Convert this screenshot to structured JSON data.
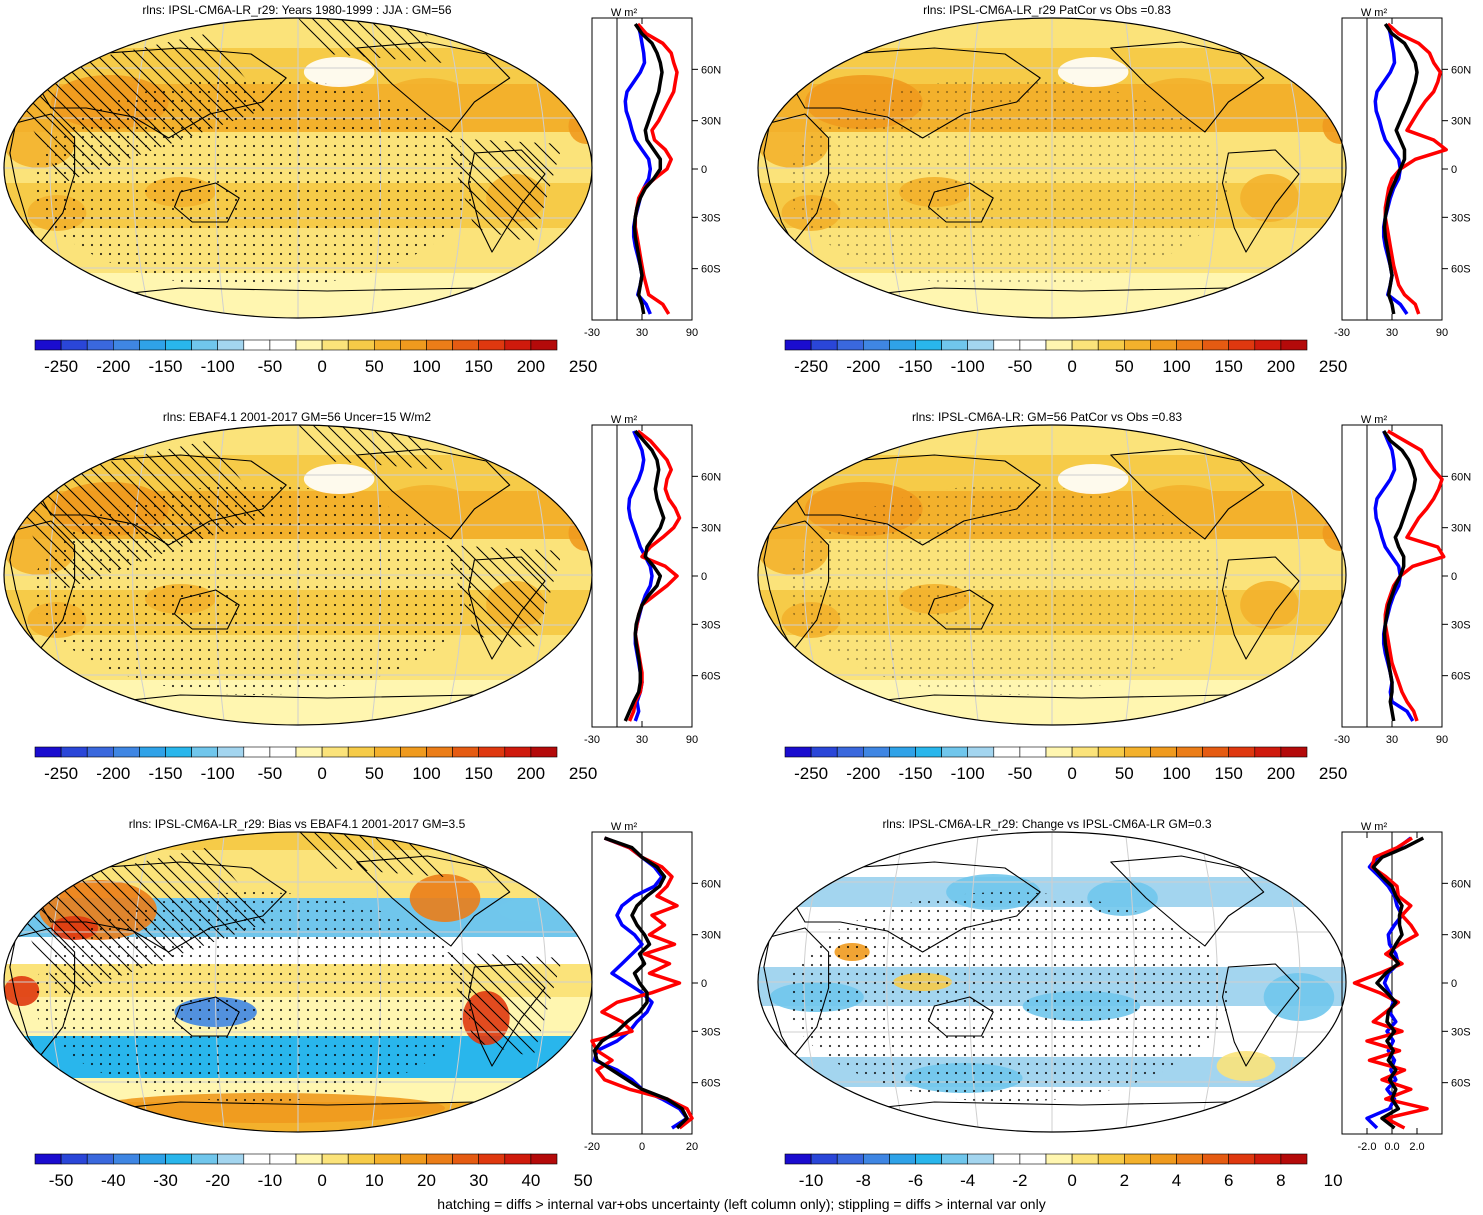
{
  "footnote": "hatching = diffs > internal var+obs uncertainty (left column only); stippling = diffs > internal var only",
  "zonal_units": "W m²",
  "lat_labels": [
    "60N",
    "30N",
    "0",
    "30S",
    "60S"
  ],
  "palettes": {
    "diverging": [
      "#1a0ccf",
      "#2a46d8",
      "#3a68dd",
      "#3f86e3",
      "#2fa2e8",
      "#29b6ec",
      "#70c6ec",
      "#a3d5ef",
      "#ffffff",
      "#ffffff",
      "#fff6b0",
      "#fbe37a",
      "#f6cb48",
      "#f3b12c",
      "#ef9a1e",
      "#eb7d18",
      "#e55b12",
      "#df380f",
      "#cf1a0c",
      "#b40a0a"
    ]
  },
  "panels": [
    {
      "id": "model-climatology",
      "title": "rlns: IPSL-CM6A-LR_r29: Years 1980-1999 : JJA : GM=56",
      "map_type": "mean",
      "hatching": true,
      "stippling": true,
      "colorbar_labels": [
        "-250",
        "-200",
        "-150",
        "-100",
        "-50",
        "0",
        "50",
        "100",
        "150",
        "200",
        "250"
      ],
      "zonal_ticks": [
        "-30",
        "30",
        "90"
      ],
      "zonal_xlim": [
        -30,
        90
      ],
      "zonal_series": [
        {
          "color": "#0000ff",
          "values": [
            25,
            28,
            30,
            32,
            33,
            28,
            20,
            12,
            10,
            11,
            15,
            18,
            22,
            30,
            38,
            40,
            38,
            32,
            28,
            25,
            22,
            20,
            20,
            22,
            25,
            28,
            30,
            28,
            25,
            35,
            40
          ]
        },
        {
          "color": "#ff0000",
          "values": [
            25,
            35,
            55,
            65,
            68,
            72,
            70,
            68,
            62,
            56,
            50,
            42,
            45,
            58,
            65,
            60,
            45,
            32,
            26,
            24,
            22,
            22,
            24,
            26,
            28,
            30,
            32,
            35,
            38,
            55,
            62
          ]
        },
        {
          "color": "#000000",
          "values": [
            22,
            30,
            42,
            48,
            52,
            54,
            52,
            50,
            46,
            42,
            38,
            34,
            36,
            44,
            52,
            52,
            44,
            34,
            28,
            24,
            22,
            21,
            22,
            24,
            26,
            28,
            30,
            28,
            26,
            30,
            32
          ]
        }
      ]
    },
    {
      "id": "model-patcor",
      "title": "rlns: IPSL-CM6A-LR_r29 PatCor vs Obs =0.83",
      "map_type": "mean",
      "hatching": false,
      "stippling": true,
      "colorbar_labels": [
        "-250",
        "-200",
        "-150",
        "-100",
        "-50",
        "0",
        "50",
        "100",
        "150",
        "200",
        "250"
      ],
      "zonal_ticks": [
        "-30",
        "30",
        "90"
      ],
      "zonal_xlim": [
        -30,
        90
      ],
      "zonal_series": [
        {
          "color": "#0000ff",
          "values": [
            25,
            28,
            30,
            32,
            33,
            28,
            20,
            12,
            10,
            11,
            15,
            18,
            22,
            30,
            38,
            40,
            38,
            32,
            28,
            25,
            22,
            20,
            20,
            22,
            25,
            28,
            30,
            28,
            25,
            40,
            48
          ]
        },
        {
          "color": "#ff0000",
          "values": [
            25,
            38,
            62,
            75,
            80,
            88,
            85,
            80,
            70,
            62,
            55,
            48,
            80,
            95,
            58,
            40,
            30,
            26,
            24,
            22,
            22,
            24,
            26,
            28,
            30,
            32,
            35,
            38,
            45,
            58,
            62
          ]
        },
        {
          "color": "#000000",
          "values": [
            22,
            30,
            45,
            52,
            58,
            60,
            58,
            54,
            50,
            45,
            40,
            35,
            40,
            45,
            45,
            40,
            35,
            30,
            26,
            24,
            22,
            21,
            22,
            24,
            26,
            28,
            30,
            28,
            26,
            30,
            32
          ]
        }
      ]
    },
    {
      "id": "obs-climatology",
      "title": "rlns: EBAF4.1 2001-2017 GM=56 Uncer=15 W/m2",
      "map_type": "mean",
      "hatching": true,
      "stippling": true,
      "colorbar_labels": [
        "-250",
        "-200",
        "-150",
        "-100",
        "-50",
        "0",
        "50",
        "100",
        "150",
        "200",
        "250"
      ],
      "zonal_ticks": [
        "-30",
        "30",
        "90"
      ],
      "zonal_xlim": [
        -30,
        90
      ],
      "zonal_series": [
        {
          "color": "#0000ff",
          "values": [
            20,
            25,
            30,
            32,
            30,
            26,
            20,
            15,
            14,
            16,
            20,
            24,
            28,
            34,
            40,
            42,
            40,
            34,
            30,
            27,
            24,
            22,
            22,
            24,
            26,
            28,
            30,
            28,
            24,
            26,
            22
          ]
        },
        {
          "color": "#ff0000",
          "values": [
            25,
            40,
            50,
            60,
            65,
            60,
            58,
            62,
            70,
            75,
            68,
            55,
            40,
            30,
            58,
            72,
            60,
            45,
            30,
            26,
            24,
            22,
            24,
            26,
            28,
            30,
            30,
            28,
            22,
            20,
            15
          ]
        },
        {
          "color": "#000000",
          "values": [
            22,
            32,
            42,
            48,
            50,
            48,
            46,
            48,
            52,
            56,
            52,
            44,
            36,
            34,
            44,
            52,
            48,
            38,
            30,
            26,
            23,
            22,
            23,
            25,
            27,
            28,
            28,
            26,
            20,
            15,
            10
          ]
        }
      ]
    },
    {
      "id": "obs-patcor",
      "title": "rlns: IPSL-CM6A-LR: GM=56 PatCor vs Obs =0.83",
      "map_type": "mean",
      "hatching": false,
      "stippling": true,
      "colorbar_labels": [
        "-250",
        "-200",
        "-150",
        "-100",
        "-50",
        "0",
        "50",
        "100",
        "150",
        "200",
        "250"
      ],
      "zonal_ticks": [
        "-30",
        "30",
        "90"
      ],
      "zonal_xlim": [
        -30,
        90
      ],
      "zonal_series": [
        {
          "color": "#0000ff",
          "values": [
            20,
            25,
            30,
            32,
            33,
            28,
            20,
            12,
            10,
            11,
            15,
            18,
            22,
            30,
            38,
            40,
            38,
            32,
            28,
            25,
            22,
            20,
            20,
            22,
            25,
            28,
            30,
            28,
            30,
            48,
            55
          ]
        },
        {
          "color": "#ff0000",
          "values": [
            25,
            45,
            65,
            72,
            80,
            90,
            86,
            80,
            72,
            62,
            55,
            48,
            85,
            92,
            55,
            40,
            32,
            28,
            24,
            22,
            22,
            24,
            26,
            28,
            30,
            34,
            38,
            42,
            48,
            56,
            60
          ]
        },
        {
          "color": "#000000",
          "values": [
            20,
            28,
            42,
            50,
            55,
            58,
            56,
            52,
            48,
            44,
            40,
            34,
            38,
            44,
            44,
            40,
            34,
            30,
            26,
            24,
            22,
            21,
            22,
            24,
            26,
            28,
            30,
            30,
            28,
            30,
            32
          ]
        }
      ]
    },
    {
      "id": "model-bias",
      "title": "rlns: IPSL-CM6A-LR_r29: Bias vs EBAF4.1 2001-2017 GM=3.5",
      "map_type": "bias",
      "hatching": true,
      "stippling": true,
      "colorbar_labels": [
        "-50",
        "-40",
        "-30",
        "-20",
        "-10",
        "0",
        "10",
        "20",
        "30",
        "40",
        "50"
      ],
      "zonal_ticks": [
        "-20",
        "0",
        "20"
      ],
      "zonal_xlim": [
        -20,
        20
      ],
      "zonal_series": [
        {
          "color": "#0000ff",
          "values": [
            -15,
            -5,
            0,
            5,
            8,
            5,
            -3,
            -8,
            -10,
            -8,
            -3,
            0,
            -4,
            -8,
            -12,
            -6,
            0,
            4,
            2,
            -2,
            -5,
            -10,
            -18,
            -19,
            -10,
            -4,
            0,
            8,
            15,
            18,
            12
          ]
        },
        {
          "color": "#ff0000",
          "values": [
            -15,
            -5,
            0,
            8,
            12,
            10,
            6,
            14,
            4,
            9,
            3,
            13,
            1,
            11,
            3,
            15,
            4,
            -10,
            -16,
            -8,
            -4,
            -20,
            -18,
            -12,
            -18,
            -15,
            -5,
            10,
            18,
            20,
            15
          ]
        },
        {
          "color": "#000000",
          "values": [
            -15,
            -4,
            0,
            6,
            9,
            7,
            2,
            -2,
            -4,
            -2,
            1,
            3,
            -1,
            1,
            -3,
            -1,
            2,
            2,
            -1,
            -6,
            -10,
            -16,
            -19,
            -18,
            -12,
            -6,
            0,
            10,
            16,
            18,
            14
          ]
        }
      ]
    },
    {
      "id": "model-change",
      "title": "rlns: IPSL-CM6A-LR_r29: Change vs IPSL-CM6A-LR GM=0.3",
      "map_type": "change",
      "hatching": false,
      "stippling": true,
      "colorbar_labels": [
        "-10",
        "-8",
        "-6",
        "-4",
        "-2",
        "0",
        "2",
        "4",
        "6",
        "8",
        "10"
      ],
      "zonal_ticks": [
        "-2.0",
        "0.0",
        "2.0"
      ],
      "zonal_xlim": [
        -4,
        4
      ],
      "zonal_series": [
        {
          "color": "#0000ff",
          "values": [
            1.5,
            0.5,
            -1.2,
            -1.8,
            -1.0,
            -0.3,
            0.2,
            0.4,
            0.8,
            0.2,
            -0.3,
            -0.2,
            0.3,
            0.5,
            -0.3,
            -0.6,
            -0.2,
            0.1,
            -0.2,
            0.3,
            -0.4,
            0.1,
            -0.3,
            0.2,
            -0.1,
            0.3,
            -0.4,
            0.2,
            -0.2,
            -2.0,
            -1.2
          ]
        },
        {
          "color": "#ff0000",
          "values": [
            1.6,
            0.4,
            -1.4,
            -1.6,
            -0.5,
            0.4,
            0.5,
            1.5,
            0.8,
            1.5,
            2.0,
            0.6,
            -0.5,
            0.8,
            -1.0,
            -3.0,
            -1.0,
            0.5,
            -0.5,
            -1.5,
            0.8,
            -2.0,
            0.6,
            -1.8,
            1.0,
            -0.8,
            1.5,
            -0.5,
            2.8,
            -0.5,
            1.0
          ]
        },
        {
          "color": "#000000",
          "values": [
            2.5,
            1.0,
            -0.8,
            -1.5,
            -0.8,
            0.0,
            0.3,
            0.8,
            0.6,
            0.6,
            0.8,
            0.3,
            -0.1,
            0.5,
            -0.5,
            -1.2,
            -0.4,
            0.3,
            -0.3,
            -0.4,
            0.2,
            -0.4,
            0.1,
            -0.3,
            0.3,
            -0.2,
            0.3,
            0.0,
            0.5,
            -0.8,
            0.2
          ]
        }
      ]
    }
  ]
}
